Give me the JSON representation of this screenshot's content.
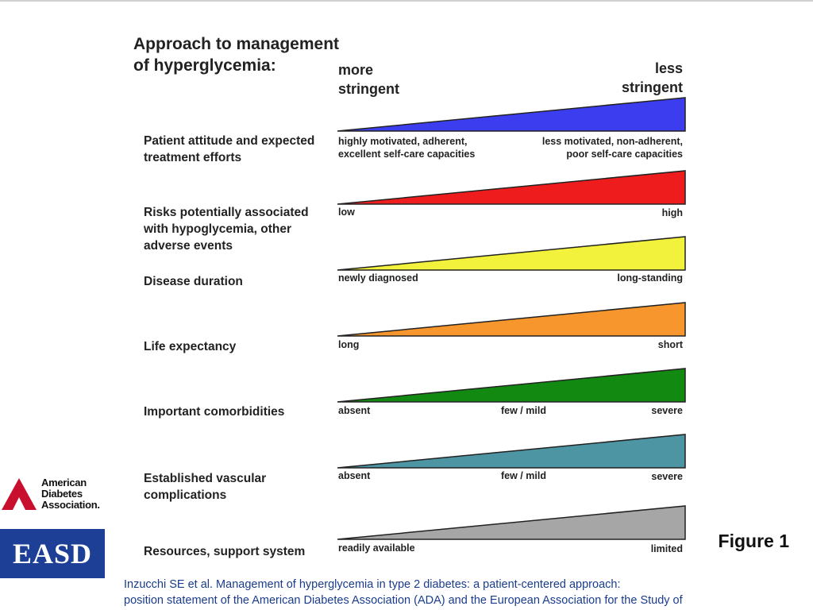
{
  "title": [
    "Approach to management",
    "of hyperglycemia:"
  ],
  "header": {
    "left": [
      "more",
      "stringent"
    ],
    "right": [
      "less",
      "stringent"
    ]
  },
  "rows": [
    {
      "label": "Patient attitude and expected treatment efforts",
      "left": [
        "highly motivated, adherent,",
        "excellent self-care capacities"
      ],
      "middle": "",
      "right": [
        "less motivated, non-adherent,",
        "poor self-care capacities"
      ],
      "color": "#3d3df0"
    },
    {
      "label": "Risks potentially associated with hypoglycemia, other adverse events",
      "left": [
        "low"
      ],
      "middle": "",
      "right": [
        "high"
      ],
      "color": "#ee1c1c"
    },
    {
      "label": "Disease duration",
      "left": [
        "newly diagnosed"
      ],
      "middle": "",
      "right": [
        "long-standing"
      ],
      "color": "#f2f23c"
    },
    {
      "label": "Life expectancy",
      "left": [
        "long"
      ],
      "middle": "",
      "right": [
        "short"
      ],
      "color": "#f7962c"
    },
    {
      "label": "Important comorbidities",
      "left": [
        "absent"
      ],
      "middle": "few / mild",
      "right": [
        "severe"
      ],
      "color": "#128a12"
    },
    {
      "label": "Established vascular complications",
      "left": [
        "absent"
      ],
      "middle": "few / mild",
      "right": [
        "severe"
      ],
      "color": "#4d95a3"
    },
    {
      "label": "Resources, support system",
      "left": [
        "readily available"
      ],
      "middle": "",
      "right": [
        "limited"
      ],
      "color": "#a6a6a6"
    }
  ],
  "figure_label": "Figure 1",
  "citation": [
    "Inzucchi SE et al. Management of hyperglycemia in type 2 diabetes: a patient-centered approach:",
    "position statement of the American Diabetes Association (ADA) and the European Association for the Study of"
  ],
  "logos": {
    "ada": {
      "lines": [
        "American",
        "Diabetes",
        "Association."
      ],
      "icon": "ada-triangle-icon",
      "color": "#c8102e"
    },
    "easd": {
      "text": "EASD",
      "color": "#1d3f95"
    }
  }
}
